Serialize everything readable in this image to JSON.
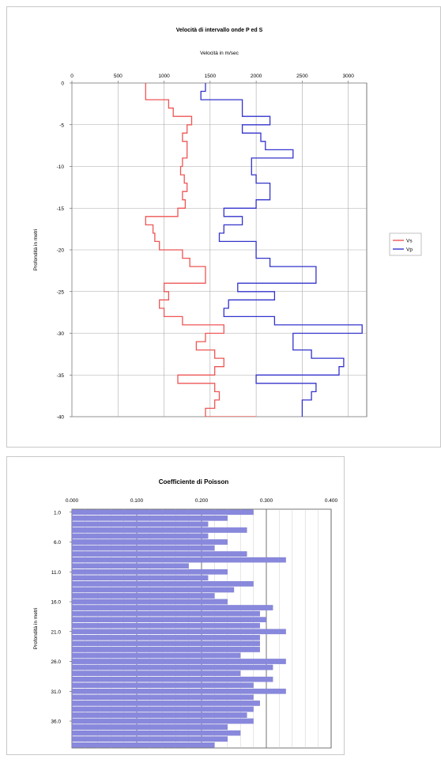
{
  "chart_data": [
    {
      "type": "line",
      "title": "Velocità di intervallo onde P ed S",
      "xlabel": "Velocità in m/sec",
      "ylabel": "Profondità in metri",
      "xlim": [
        0,
        3200
      ],
      "ylim": [
        0,
        -40
      ],
      "x_ticks": [
        "0",
        "500",
        "1000",
        "1500",
        "2000",
        "2500",
        "3000"
      ],
      "y_ticks": [
        "0",
        "-5",
        "-10",
        "-15",
        "-20",
        "-25",
        "-30",
        "-35",
        "-40"
      ],
      "legend": "right",
      "grid": true,
      "series": [
        {
          "name": "Vs",
          "color": "#ee5555",
          "depth": [
            0,
            -2,
            -3,
            -4,
            -5,
            -6,
            -7,
            -8,
            -9,
            -10,
            -11,
            -12,
            -13,
            -14,
            -15,
            -16,
            -17,
            -18,
            -19,
            -20,
            -21,
            -22,
            -23,
            -24,
            -25,
            -26,
            -27,
            -28,
            -29,
            -30,
            -31,
            -32,
            -33,
            -34,
            -35,
            -36,
            -37,
            -38,
            -39,
            -40
          ],
          "velocity": [
            800,
            1050,
            1100,
            1300,
            1250,
            1200,
            1250,
            1250,
            1200,
            1180,
            1220,
            1250,
            1200,
            1230,
            1150,
            800,
            880,
            900,
            950,
            1200,
            1280,
            1450,
            1450,
            1000,
            1050,
            950,
            1000,
            1200,
            1650,
            1450,
            1350,
            1550,
            1650,
            1550,
            1150,
            1550,
            1600,
            1550,
            1450,
            2000
          ]
        },
        {
          "name": "Vp",
          "color": "#3333cc",
          "depth": [
            0,
            -1,
            -2,
            -3,
            -4,
            -5,
            -6,
            -7,
            -8,
            -9,
            -10,
            -11,
            -12,
            -13,
            -14,
            -15,
            -16,
            -17,
            -18,
            -19,
            -20,
            -21,
            -22,
            -23,
            -24,
            -25,
            -26,
            -27,
            -28,
            -29,
            -30,
            -31,
            -32,
            -33,
            -34,
            -35,
            -36,
            -37,
            -38,
            -39,
            -40
          ],
          "velocity": [
            1450,
            1400,
            1850,
            1850,
            2150,
            1850,
            2050,
            2100,
            2400,
            1950,
            1950,
            2000,
            2150,
            2150,
            2000,
            1650,
            1850,
            1650,
            1600,
            2000,
            2000,
            2150,
            2650,
            2650,
            1800,
            2200,
            1700,
            1650,
            2200,
            3150,
            2400,
            2400,
            2600,
            2950,
            2900,
            2000,
            2650,
            2600,
            2500,
            2500,
            2500
          ]
        }
      ]
    },
    {
      "type": "bar",
      "title": "Coefficiente di Poisson",
      "xlabel": "",
      "ylabel": "Profondità in metri",
      "xlim": [
        0,
        0.4
      ],
      "x_ticks": [
        "0.000",
        "0.100",
        "0.200",
        "0.300",
        "0.400"
      ],
      "y_ticks": [
        "1.0",
        "6.0",
        "11.0",
        "16.0",
        "21.0",
        "26.0",
        "31.0",
        "36.0"
      ],
      "orientation": "horizontal",
      "color": "#8888dd",
      "categories": [
        1,
        2,
        3,
        4,
        5,
        6,
        7,
        8,
        9,
        10,
        11,
        12,
        13,
        14,
        15,
        16,
        17,
        18,
        19,
        20,
        21,
        22,
        23,
        24,
        25,
        26,
        27,
        28,
        29,
        30,
        31,
        32,
        33,
        34,
        35,
        36,
        37,
        38,
        39,
        40
      ],
      "values": [
        0.28,
        0.24,
        0.21,
        0.27,
        0.21,
        0.24,
        0.22,
        0.27,
        0.33,
        0.18,
        0.24,
        0.21,
        0.28,
        0.25,
        0.22,
        0.24,
        0.31,
        0.29,
        0.3,
        0.29,
        0.33,
        0.29,
        0.29,
        0.29,
        0.26,
        0.33,
        0.31,
        0.26,
        0.31,
        0.28,
        0.33,
        0.28,
        0.29,
        0.28,
        0.27,
        0.28,
        0.24,
        0.26,
        0.24,
        0.22
      ]
    }
  ]
}
